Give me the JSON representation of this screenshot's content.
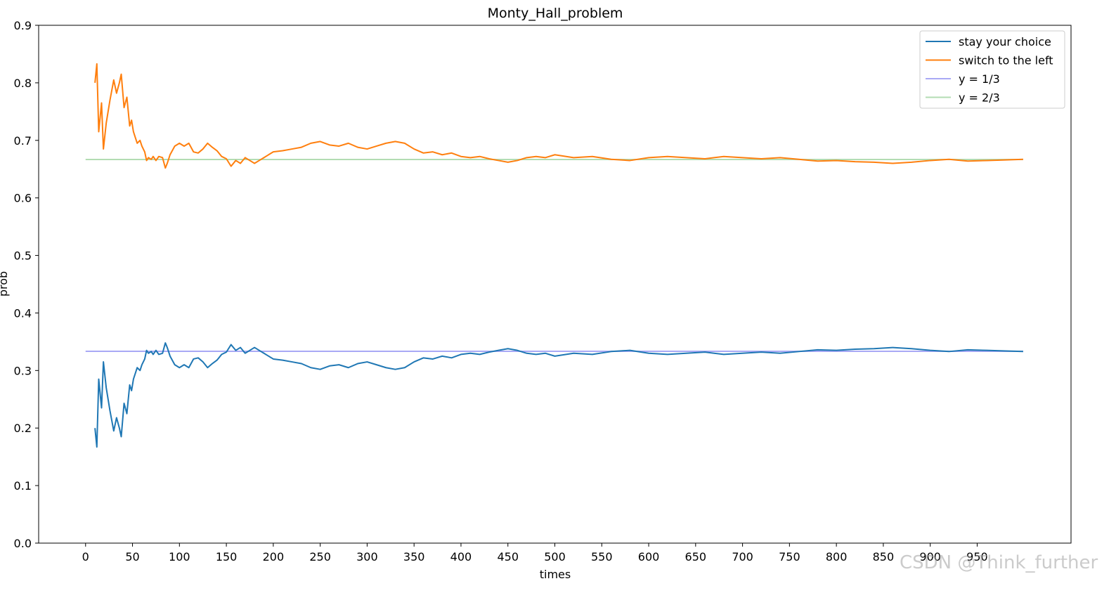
{
  "chart_data": {
    "type": "line",
    "title": "Monty_Hall_problem",
    "xlabel": "times",
    "ylabel": "prob",
    "xlim": [
      -50,
      1050
    ],
    "ylim": [
      0.0,
      0.9
    ],
    "xticks": [
      0,
      50,
      100,
      150,
      200,
      250,
      300,
      350,
      400,
      450,
      500,
      550,
      600,
      650,
      700,
      750,
      800,
      850,
      900,
      950
    ],
    "yticks": [
      0.0,
      0.1,
      0.2,
      0.3,
      0.4,
      0.5,
      0.6,
      0.7,
      0.8,
      0.9
    ],
    "grid": false,
    "legend_position": "top-right",
    "series": [
      {
        "name": "stay your choice",
        "color": "#1f77b4",
        "x": [
          10,
          12,
          14,
          17,
          19,
          22,
          26,
          30,
          33,
          36,
          38,
          41,
          44,
          47,
          49,
          51,
          53,
          55,
          58,
          60,
          63,
          65,
          67,
          70,
          72,
          75,
          78,
          82,
          85,
          87,
          90,
          95,
          100,
          105,
          110,
          115,
          120,
          125,
          130,
          135,
          140,
          145,
          150,
          155,
          160,
          165,
          170,
          175,
          180,
          185,
          190,
          200,
          210,
          220,
          230,
          240,
          250,
          260,
          270,
          280,
          290,
          300,
          310,
          320,
          330,
          340,
          350,
          360,
          370,
          380,
          390,
          400,
          410,
          420,
          430,
          440,
          450,
          460,
          470,
          480,
          490,
          500,
          520,
          540,
          560,
          580,
          600,
          620,
          640,
          660,
          680,
          700,
          720,
          740,
          760,
          780,
          800,
          820,
          840,
          860,
          880,
          900,
          920,
          940,
          960,
          980,
          999
        ],
        "y": [
          0.2,
          0.167,
          0.285,
          0.235,
          0.315,
          0.27,
          0.23,
          0.195,
          0.218,
          0.2,
          0.185,
          0.243,
          0.225,
          0.275,
          0.265,
          0.285,
          0.295,
          0.305,
          0.3,
          0.31,
          0.32,
          0.335,
          0.33,
          0.333,
          0.328,
          0.335,
          0.328,
          0.33,
          0.348,
          0.34,
          0.325,
          0.31,
          0.305,
          0.31,
          0.305,
          0.32,
          0.322,
          0.315,
          0.305,
          0.312,
          0.318,
          0.328,
          0.332,
          0.345,
          0.335,
          0.34,
          0.33,
          0.335,
          0.34,
          0.335,
          0.33,
          0.32,
          0.318,
          0.315,
          0.312,
          0.305,
          0.302,
          0.308,
          0.31,
          0.305,
          0.312,
          0.315,
          0.31,
          0.305,
          0.302,
          0.305,
          0.315,
          0.322,
          0.32,
          0.325,
          0.322,
          0.328,
          0.33,
          0.328,
          0.332,
          0.335,
          0.338,
          0.335,
          0.33,
          0.328,
          0.33,
          0.325,
          0.33,
          0.328,
          0.333,
          0.335,
          0.33,
          0.328,
          0.33,
          0.332,
          0.328,
          0.33,
          0.332,
          0.33,
          0.333,
          0.336,
          0.335,
          0.337,
          0.338,
          0.34,
          0.338,
          0.335,
          0.333,
          0.336,
          0.335,
          0.334,
          0.333
        ]
      },
      {
        "name": "switch to the left",
        "color": "#ff7f0e",
        "x": [
          10,
          12,
          14,
          17,
          19,
          22,
          26,
          30,
          33,
          36,
          38,
          41,
          44,
          47,
          49,
          51,
          53,
          55,
          58,
          60,
          63,
          65,
          67,
          70,
          72,
          75,
          78,
          82,
          85,
          87,
          90,
          95,
          100,
          105,
          110,
          115,
          120,
          125,
          130,
          135,
          140,
          145,
          150,
          155,
          160,
          165,
          170,
          175,
          180,
          185,
          190,
          200,
          210,
          220,
          230,
          240,
          250,
          260,
          270,
          280,
          290,
          300,
          310,
          320,
          330,
          340,
          350,
          360,
          370,
          380,
          390,
          400,
          410,
          420,
          430,
          440,
          450,
          460,
          470,
          480,
          490,
          500,
          520,
          540,
          560,
          580,
          600,
          620,
          640,
          660,
          680,
          700,
          720,
          740,
          760,
          780,
          800,
          820,
          840,
          860,
          880,
          900,
          920,
          940,
          960,
          980,
          999
        ],
        "y": [
          0.8,
          0.833,
          0.715,
          0.765,
          0.685,
          0.73,
          0.77,
          0.805,
          0.782,
          0.8,
          0.815,
          0.757,
          0.775,
          0.725,
          0.735,
          0.715,
          0.705,
          0.695,
          0.7,
          0.69,
          0.68,
          0.665,
          0.67,
          0.667,
          0.672,
          0.665,
          0.672,
          0.67,
          0.652,
          0.66,
          0.675,
          0.69,
          0.695,
          0.69,
          0.695,
          0.68,
          0.678,
          0.685,
          0.695,
          0.688,
          0.682,
          0.672,
          0.668,
          0.655,
          0.665,
          0.66,
          0.67,
          0.665,
          0.66,
          0.665,
          0.67,
          0.68,
          0.682,
          0.685,
          0.688,
          0.695,
          0.698,
          0.692,
          0.69,
          0.695,
          0.688,
          0.685,
          0.69,
          0.695,
          0.698,
          0.695,
          0.685,
          0.678,
          0.68,
          0.675,
          0.678,
          0.672,
          0.67,
          0.672,
          0.668,
          0.665,
          0.662,
          0.665,
          0.67,
          0.672,
          0.67,
          0.675,
          0.67,
          0.672,
          0.667,
          0.665,
          0.67,
          0.672,
          0.67,
          0.668,
          0.672,
          0.67,
          0.668,
          0.67,
          0.667,
          0.664,
          0.665,
          0.663,
          0.662,
          0.66,
          0.662,
          0.665,
          0.667,
          0.664,
          0.665,
          0.666,
          0.667
        ]
      },
      {
        "name": "y = 1/3",
        "color": "#a9a9f5",
        "x": [
          0,
          999
        ],
        "y": [
          0.3333,
          0.3333
        ]
      },
      {
        "name": "y = 2/3",
        "color": "#b3dcb3",
        "x": [
          0,
          999
        ],
        "y": [
          0.6667,
          0.6667
        ]
      }
    ]
  },
  "watermark": "CSDN @Think_further"
}
